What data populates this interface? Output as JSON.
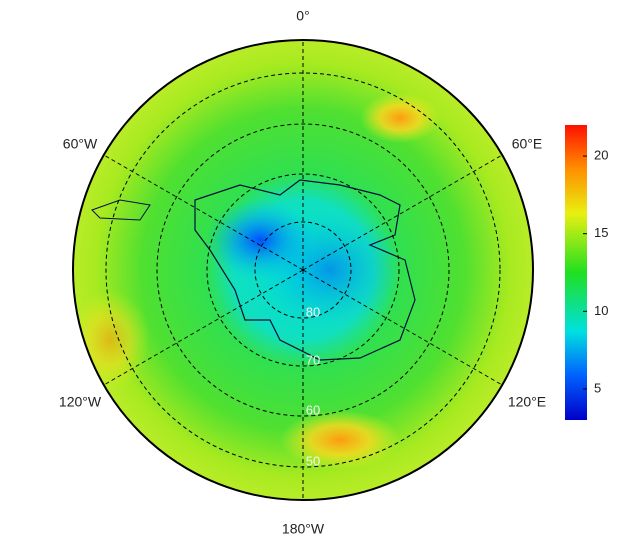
{
  "map": {
    "type": "polar-stereographic",
    "lon_labels": [
      "0°",
      "60°E",
      "120°E",
      "180°W",
      "120°W",
      "60°W"
    ],
    "lat_labels": [
      "80",
      "70",
      "60",
      "50"
    ]
  },
  "colorbar": {
    "lim": [
      3,
      22
    ],
    "ticks": [
      5,
      10,
      15,
      20
    ]
  }
}
